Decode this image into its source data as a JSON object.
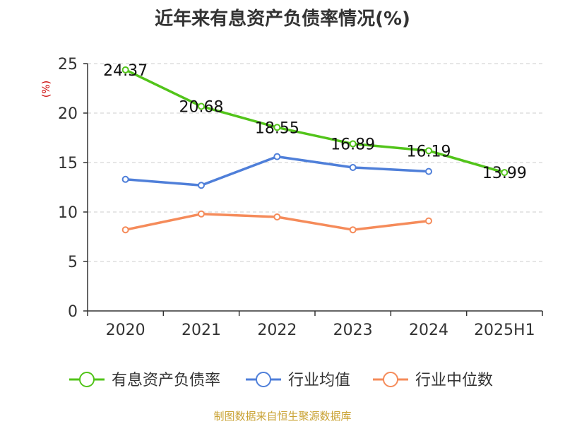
{
  "chart_data": {
    "type": "line",
    "title": "近年来有息资产负债率情况(%)",
    "ylabel": "(%)",
    "categories": [
      "2020",
      "2021",
      "2022",
      "2023",
      "2024",
      "2025H1"
    ],
    "ylim": [
      0,
      25
    ],
    "yticks": [
      "0",
      "5",
      "10",
      "15",
      "20",
      "25"
    ],
    "grid": true,
    "legend": "bottom",
    "series": [
      {
        "name": "有息资产负债率",
        "color": "#52c41a",
        "values": [
          24.37,
          20.68,
          18.55,
          16.89,
          16.19,
          13.99
        ],
        "labels": [
          "24.37",
          "20.68",
          "18.55",
          "16.89",
          "16.19",
          "13.99"
        ]
      },
      {
        "name": "行业均值",
        "color": "#4f7fd9",
        "values": [
          13.3,
          12.7,
          15.6,
          14.5,
          14.1,
          null
        ]
      },
      {
        "name": "行业中位数",
        "color": "#f58b5a",
        "values": [
          8.2,
          9.8,
          9.5,
          8.2,
          9.1,
          null
        ]
      }
    ],
    "source": "制图数据来自恒生聚源数据库"
  }
}
